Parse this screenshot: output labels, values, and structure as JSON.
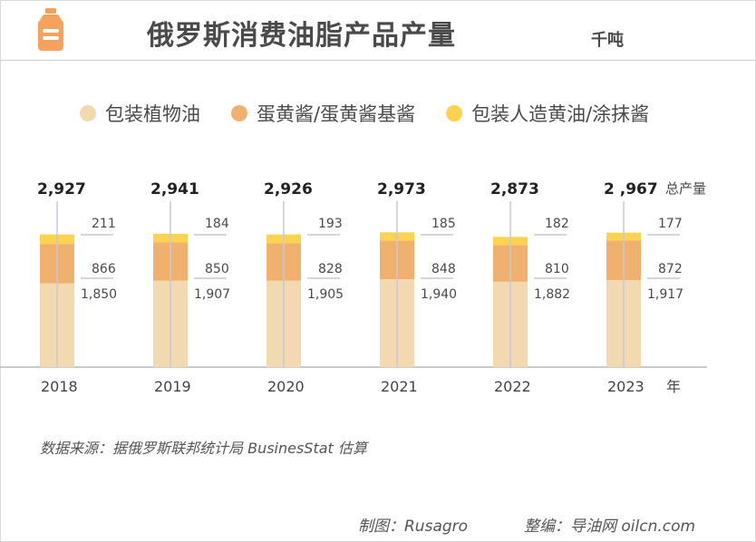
{
  "header": {
    "title": "俄罗斯消费油脂产品产量",
    "unit": "千吨",
    "logo_icon": "oil-bottle-icon"
  },
  "colors": {
    "vegetable_oil": "#f2d9b0",
    "mayonnaise": "#f0b06e",
    "margarine": "#fbd34e",
    "axis": "#b8b8b8",
    "leader": "#bdbdbd",
    "text": "#4a4a4a"
  },
  "chart_data": {
    "type": "bar",
    "stacked": true,
    "categories": [
      "2018",
      "2019",
      "2020",
      "2021",
      "2022",
      "2023"
    ],
    "x_unit": "年",
    "series": [
      {
        "name": "包装植物油",
        "values": [
          1850,
          1907,
          1905,
          1940,
          1882,
          1917
        ],
        "labels": [
          "1,850",
          "1,907",
          "1,905",
          "1,940",
          "1,882",
          "1,917"
        ]
      },
      {
        "name": "蛋黄酱/蛋黄酱基酱",
        "values": [
          866,
          850,
          828,
          848,
          810,
          872
        ],
        "labels": [
          "866",
          "850",
          "828",
          "848",
          "810",
          "872"
        ]
      },
      {
        "name": "包装人造黄油/涂抹酱",
        "values": [
          211,
          184,
          193,
          185,
          182,
          177
        ],
        "labels": [
          "211",
          "184",
          "193",
          "185",
          "182",
          "177"
        ]
      }
    ],
    "totals": [
      2927,
      2941,
      2926,
      2973,
      2873,
      2967
    ],
    "total_labels": [
      "2,927",
      "2,941",
      "2,926",
      "2,973",
      "2,873",
      "2 ,967"
    ],
    "total_label": "总产量",
    "ylim": [
      0,
      3000
    ],
    "legend_position": "top"
  },
  "footer": {
    "source": "数据来源：据俄罗斯联邦统计局  BusinesStat 估算",
    "made_by": "制图：Rusagro",
    "edited_by": "整编：导油网 oilcn.com"
  }
}
